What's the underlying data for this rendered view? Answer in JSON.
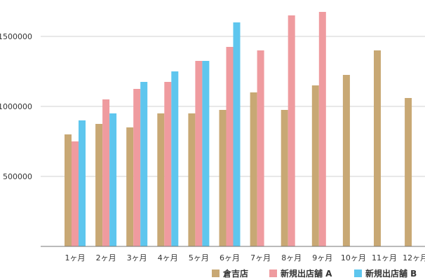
{
  "chart_data": {
    "type": "bar",
    "title": "",
    "xlabel": "",
    "ylabel": "",
    "categories": [
      "1ヶ月",
      "2ヶ月",
      "3ヶ月",
      "4ヶ月",
      "5ヶ月",
      "6ヶ月",
      "7ヶ月",
      "8ヶ月",
      "9ヶ月",
      "10ヶ月",
      "11ヶ月",
      "12ヶ月"
    ],
    "series": [
      {
        "name": "倉吉店",
        "color": "#c8a874",
        "values": [
          800000,
          875000,
          850000,
          950000,
          950000,
          975000,
          1100000,
          975000,
          1150000,
          1225000,
          1400000,
          1060000
        ]
      },
      {
        "name": "新規出店舗 A",
        "color": "#ef9b9f",
        "values": [
          750000,
          1050000,
          1125000,
          1175000,
          1325000,
          1425000,
          1400000,
          1650000,
          1675000,
          null,
          null,
          null
        ]
      },
      {
        "name": "新規出店舗 B",
        "color": "#5ec6ee",
        "values": [
          900000,
          950000,
          1175000,
          1250000,
          1325000,
          1600000,
          null,
          null,
          null,
          null,
          null,
          null
        ]
      }
    ],
    "ylim": [
      0,
      1750000
    ],
    "yticks": [
      500000,
      1000000,
      1500000
    ],
    "ytick_labels": [
      "500000",
      "1000000",
      "1500000"
    ],
    "grid": true,
    "legend_position": "bottom-right"
  }
}
